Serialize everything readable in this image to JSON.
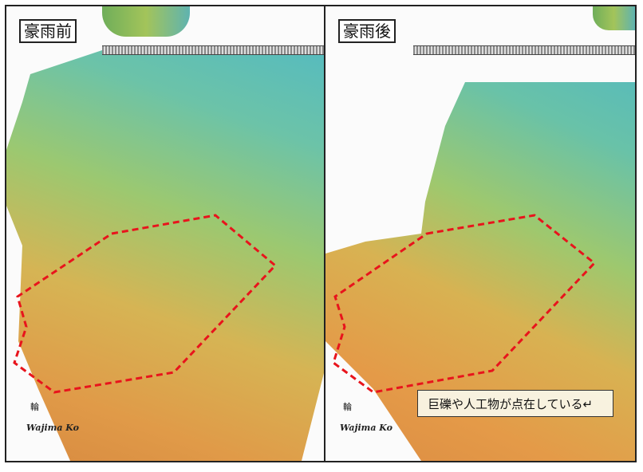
{
  "panels": [
    {
      "label": "豪雨前",
      "place_name": "Wajima Ko",
      "kanji": "輪"
    },
    {
      "label": "豪雨後",
      "place_name": "Wajima Ko",
      "kanji": "輪"
    }
  ],
  "callout": "巨礫や人工物が点在している↵",
  "colors": {
    "outline": "#e8141c",
    "deep": "#4bb6c8",
    "shallow": "#e09a48"
  }
}
